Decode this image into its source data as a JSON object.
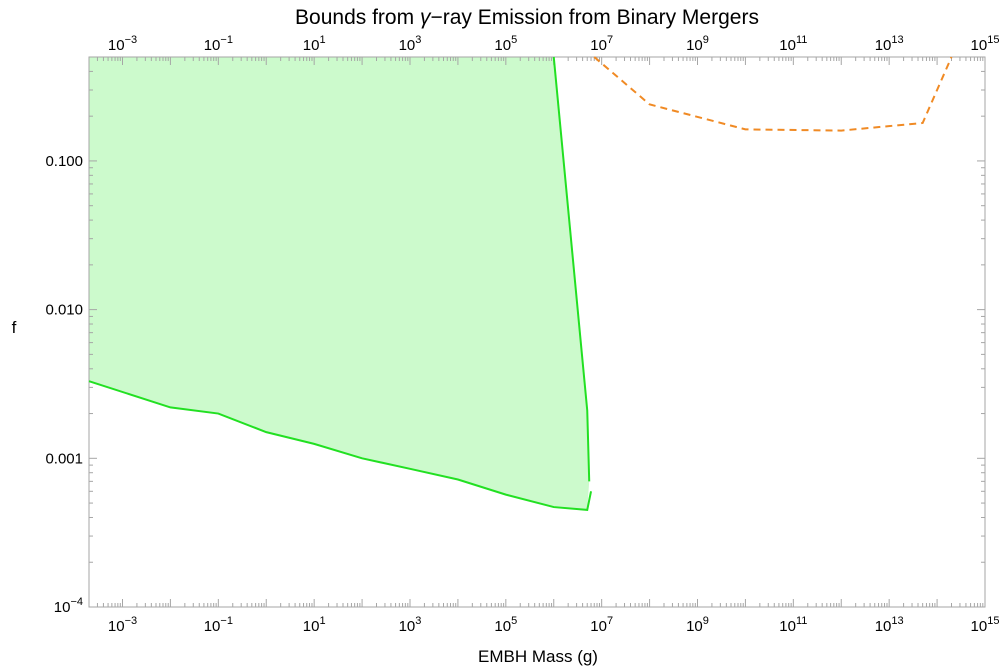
{
  "chart_data": {
    "type": "area",
    "title": "Bounds from γ−ray Emission from Binary Mergers",
    "title_parts": {
      "prefix": "Bounds from ",
      "symbol": "γ",
      "suffix": "−ray Emission from Binary Mergers"
    },
    "xlabel": "EMBH Mass (g)",
    "ylabel": "f",
    "x_scale": "log",
    "y_scale": "log",
    "xlim": [
      0.0002,
      1000000000000000.0
    ],
    "ylim": [
      0.0001,
      0.5
    ],
    "x_tick_labels": [
      {
        "value": 0.001,
        "base": "10",
        "exp": "−3"
      },
      {
        "value": 0.1,
        "base": "10",
        "exp": "−1"
      },
      {
        "value": 10,
        "base": "10",
        "exp": "1"
      },
      {
        "value": 1000,
        "base": "10",
        "exp": "3"
      },
      {
        "value": 100000,
        "base": "10",
        "exp": "5"
      },
      {
        "value": 10000000,
        "base": "10",
        "exp": "7"
      },
      {
        "value": 1000000000,
        "base": "10",
        "exp": "9"
      },
      {
        "value": 100000000000,
        "base": "10",
        "exp": "11"
      },
      {
        "value": 10000000000000,
        "base": "10",
        "exp": "13"
      },
      {
        "value": 1000000000000000,
        "base": "10",
        "exp": "15"
      }
    ],
    "y_tick_labels": [
      {
        "value": 0.0001,
        "text": "",
        "base": "10",
        "exp": "−4"
      },
      {
        "value": 0.001,
        "text": "0.001"
      },
      {
        "value": 0.01,
        "text": "0.010"
      },
      {
        "value": 0.1,
        "text": "0.100"
      }
    ],
    "colors": {
      "green_line": "#22e022",
      "green_fill": "#ccfacc",
      "orange_line": "#f08a24",
      "frame": "#a6a6a6"
    },
    "series": [
      {
        "style": "solid",
        "color": "#22e022",
        "filled": true,
        "points": [
          [
            0.0002,
            0.0033
          ],
          [
            0.01,
            0.0022
          ],
          [
            0.1,
            0.002
          ],
          [
            1,
            0.0015
          ],
          [
            10,
            0.00125
          ],
          [
            100,
            0.001
          ],
          [
            1000,
            0.00085
          ],
          [
            10000,
            0.00072
          ],
          [
            100000,
            0.00057
          ],
          [
            1000000,
            0.00047
          ],
          [
            5000000,
            0.00045
          ],
          [
            6000000,
            0.0006
          ]
        ],
        "upper_boundary": [
          [
            5500000,
            0.0007
          ],
          [
            5000000,
            0.0021
          ],
          [
            1000000,
            0.5
          ]
        ]
      },
      {
        "style": "dashed",
        "color": "#f08a24",
        "filled": false,
        "points": [
          [
            7000000,
            0.5
          ],
          [
            100000000,
            0.24
          ],
          [
            10000000000,
            0.163
          ],
          [
            1000000000000,
            0.16
          ],
          [
            50000000000000,
            0.18
          ],
          [
            200000000000000,
            0.5
          ]
        ]
      }
    ]
  }
}
